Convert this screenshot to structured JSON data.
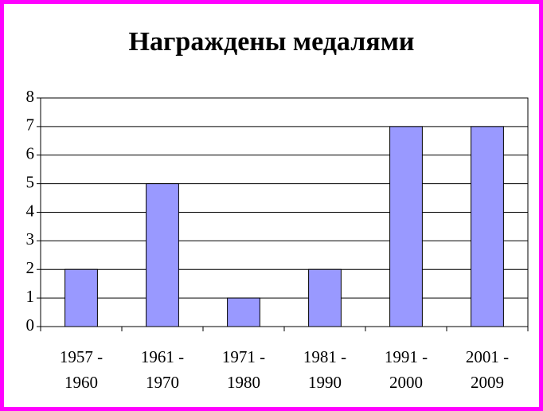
{
  "chart_data": {
    "type": "bar",
    "title": "Награждены медалями",
    "categories": [
      "1957 - 1960",
      "1961 - 1970",
      "1971 - 1980",
      "1981 - 1990",
      "1991 - 2000",
      "2001 - 2009"
    ],
    "values": [
      2,
      5,
      1,
      2,
      7,
      7
    ],
    "color": "#9999ff",
    "ylim": [
      0,
      8
    ],
    "yticks": [
      0,
      1,
      2,
      3,
      4,
      5,
      6,
      7,
      8
    ],
    "grid": true
  }
}
